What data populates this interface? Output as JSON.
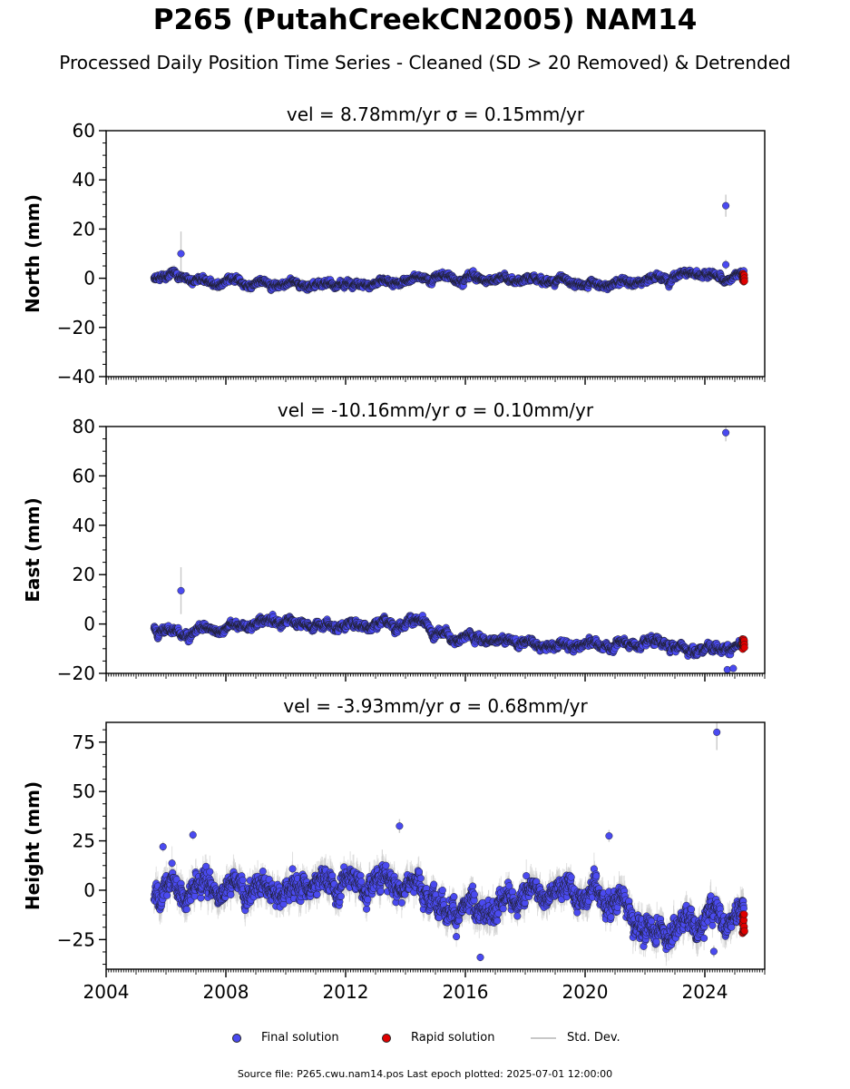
{
  "figure": {
    "title": "P265 (PutahCreekCN2005) NAM14",
    "subtitle": "Processed Daily Position Time Series - Cleaned (SD > 20 Removed) & Detrended",
    "source": "Source file: P265.cwu.nam14.pos  Last epoch plotted: 2025-07-01 12:00:00"
  },
  "legend": {
    "final": "Final solution",
    "rapid": "Rapid solution",
    "std": "Std. Dev."
  },
  "colors": {
    "final": "#4a4af0",
    "rapid": "#e00000",
    "std": "#c8c8c8",
    "edge": "#1a1a1a"
  },
  "chart_data": [
    {
      "type": "scatter",
      "title": "vel = 8.78mm/yr   σ = 0.15mm/yr",
      "ylabel": "North (mm)",
      "xlim": [
        2004,
        2026
      ],
      "ylim": [
        -40,
        60
      ],
      "yticks": [
        -40,
        -20,
        0,
        20,
        40,
        60
      ],
      "ytick_labels": [
        "−40",
        "−20",
        "0",
        "20",
        "40",
        "60"
      ],
      "xticks": [
        2004,
        2008,
        2012,
        2016,
        2020,
        2024
      ],
      "show_xtick_labels": false,
      "series_profile": {
        "start": 2005.6,
        "end": 2025.3,
        "spread": 1.3,
        "std_dev": 1.5,
        "trend": [
          [
            2005.6,
            0
          ],
          [
            2006.3,
            1.5
          ],
          [
            2007.5,
            -1.5
          ],
          [
            2010.5,
            -2.5
          ],
          [
            2013.5,
            -2
          ],
          [
            2014.6,
            0.5
          ],
          [
            2016.5,
            0
          ],
          [
            2019.5,
            -1.5
          ],
          [
            2020.6,
            -3
          ],
          [
            2022.5,
            0
          ],
          [
            2023.5,
            2
          ],
          [
            2024.5,
            0
          ],
          [
            2025.3,
            1
          ]
        ]
      },
      "outliers": [
        {
          "x": 2006.5,
          "y": 10,
          "sd": 18
        },
        {
          "x": 2024.7,
          "y": 29.5,
          "sd": 9
        },
        {
          "x": 2024.7,
          "y": 5.5,
          "sd": 4
        }
      ],
      "rapid_solution": {
        "x_start": 2025.25,
        "x_end": 2025.5,
        "y_min": -1.5,
        "y_max": 2
      }
    },
    {
      "type": "scatter",
      "title": "vel = -10.16mm/yr   σ = 0.10mm/yr",
      "ylabel": "East (mm)",
      "xlim": [
        2004,
        2026
      ],
      "ylim": [
        -20,
        80
      ],
      "yticks": [
        -20,
        0,
        20,
        40,
        60,
        80
      ],
      "ytick_labels": [
        "−20",
        "0",
        "20",
        "40",
        "60",
        "80"
      ],
      "xticks": [
        2004,
        2008,
        2012,
        2016,
        2020,
        2024
      ],
      "show_xtick_labels": false,
      "series_profile": {
        "start": 2005.6,
        "end": 2025.3,
        "spread": 1.6,
        "std_dev": 1.2,
        "trend": [
          [
            2005.6,
            -1
          ],
          [
            2006.3,
            -4
          ],
          [
            2007.5,
            -2
          ],
          [
            2009.6,
            1
          ],
          [
            2011.5,
            -1
          ],
          [
            2013.8,
            0.5
          ],
          [
            2014.7,
            1
          ],
          [
            2014.9,
            -5
          ],
          [
            2016.5,
            -6
          ],
          [
            2018.5,
            -8
          ],
          [
            2020.5,
            -9
          ],
          [
            2022.5,
            -7
          ],
          [
            2023.5,
            -11
          ],
          [
            2024.5,
            -9
          ],
          [
            2025.3,
            -10
          ]
        ]
      },
      "outliers": [
        {
          "x": 2006.5,
          "y": 13.5,
          "sd": 19
        },
        {
          "x": 2024.7,
          "y": 77.5,
          "sd": 7
        },
        {
          "x": 2024.75,
          "y": -18.5,
          "sd": 2
        },
        {
          "x": 2024.95,
          "y": -18,
          "sd": 2
        }
      ],
      "rapid_solution": {
        "x_start": 2025.25,
        "x_end": 2025.5,
        "y_min": -10.5,
        "y_max": -6
      }
    },
    {
      "type": "scatter",
      "title": "vel = -3.93mm/yr   σ = 0.68mm/yr",
      "ylabel": "Height (mm)",
      "xlim": [
        2004,
        2026
      ],
      "ylim": [
        -40,
        85
      ],
      "yticks": [
        -25,
        0,
        25,
        50,
        75
      ],
      "ytick_labels": [
        "−25",
        "0",
        "25",
        "50",
        "75"
      ],
      "xticks": [
        2004,
        2008,
        2012,
        2016,
        2020,
        2024
      ],
      "xtick_labels": [
        "2004",
        "2008",
        "2012",
        "2016",
        "2020",
        "2024"
      ],
      "show_xtick_labels": true,
      "series_profile": {
        "start": 2005.6,
        "end": 2025.3,
        "spread": 6,
        "std_dev": 6,
        "trend": [
          [
            2005.6,
            -2
          ],
          [
            2007.5,
            2
          ],
          [
            2010,
            1
          ],
          [
            2012,
            4
          ],
          [
            2014,
            4
          ],
          [
            2014.6,
            2
          ],
          [
            2015.2,
            -8
          ],
          [
            2016.5,
            -12
          ],
          [
            2018,
            -2
          ],
          [
            2019.5,
            0
          ],
          [
            2020.8,
            -3
          ],
          [
            2021.5,
            -12
          ],
          [
            2022.5,
            -22
          ],
          [
            2023.5,
            -16
          ],
          [
            2024.5,
            -12
          ],
          [
            2025.3,
            -11
          ]
        ]
      },
      "outliers": [
        {
          "x": 2005.9,
          "y": 22,
          "sd": 5
        },
        {
          "x": 2006.9,
          "y": 28,
          "sd": 5
        },
        {
          "x": 2013.8,
          "y": 32.5,
          "sd": 7
        },
        {
          "x": 2016.5,
          "y": -34,
          "sd": 4
        },
        {
          "x": 2020.8,
          "y": 27.5,
          "sd": 6
        },
        {
          "x": 2024.4,
          "y": 80,
          "sd": 18
        },
        {
          "x": 2024.3,
          "y": -31,
          "sd": 6
        }
      ],
      "rapid_solution": {
        "x_start": 2025.25,
        "x_end": 2025.5,
        "y_min": -22,
        "y_max": -12
      }
    }
  ]
}
